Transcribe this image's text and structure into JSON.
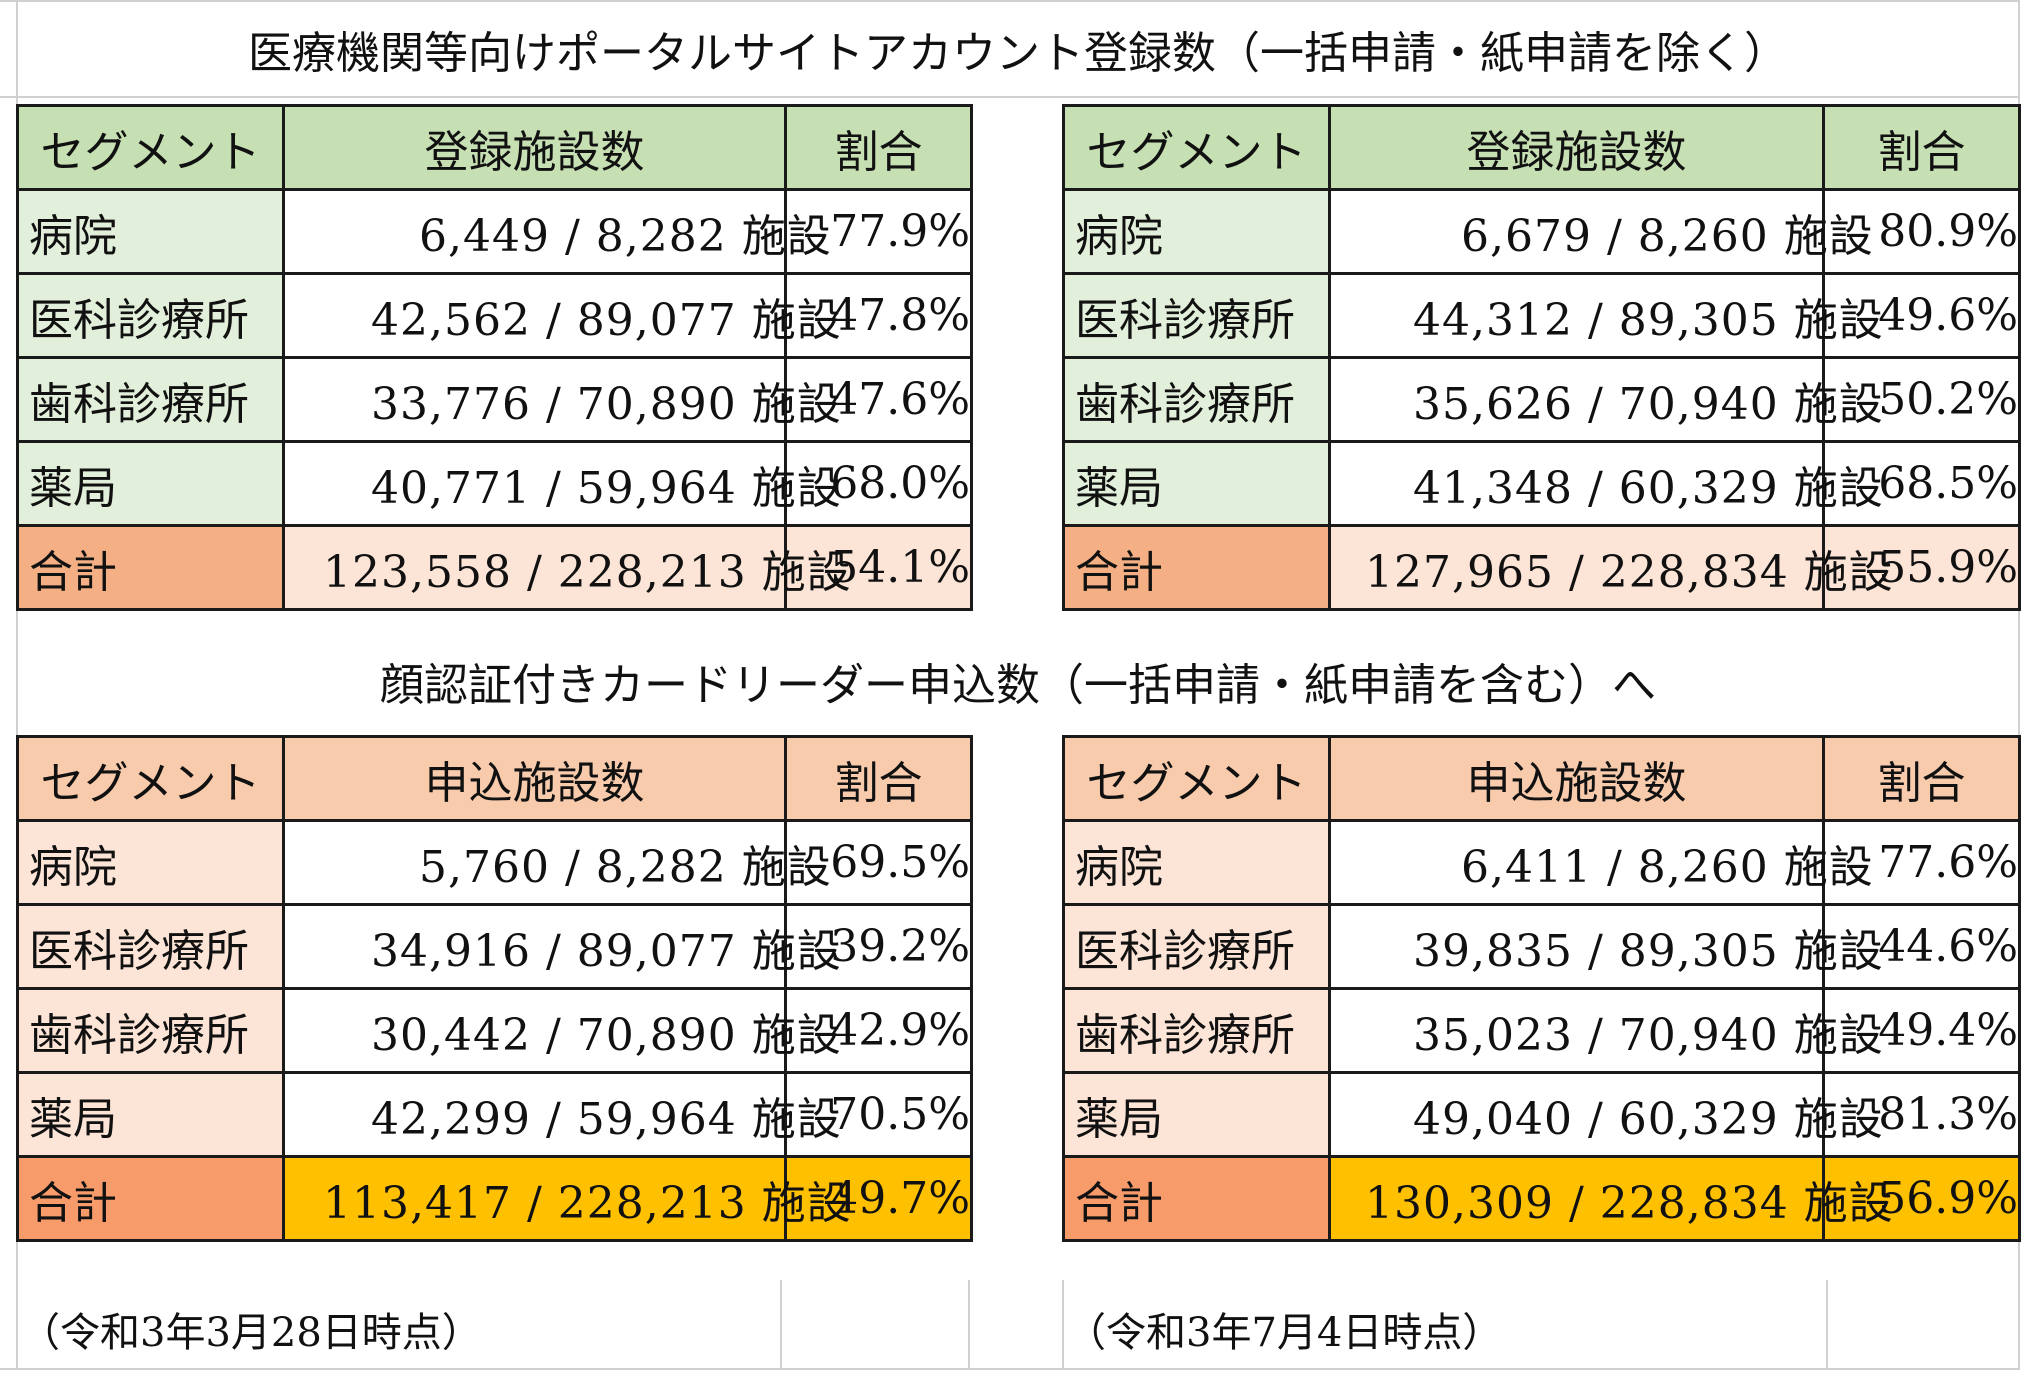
{
  "colors": {
    "header_green": "#c6e0b4",
    "segment_green": "#e2efda",
    "header_orange": "#f8cbad",
    "segment_orange": "#fce4d6",
    "total_orange": "#f4b084",
    "total_deep_orange": "#f79b6b",
    "total_yellow": "#ffc000"
  },
  "portal_section": {
    "title": "医療機関等向けポータルサイトアカウント登録数（一括申請・紙申請を除く）",
    "headers": {
      "segment": "セグメント",
      "count": "登録施設数",
      "ratio": "割合"
    },
    "left": {
      "rows": [
        {
          "segment": "病院",
          "count": "6,449 / 8,282 施設",
          "ratio": "77.9%"
        },
        {
          "segment": "医科診療所",
          "count": "42,562 / 89,077 施設",
          "ratio": "47.8%"
        },
        {
          "segment": "歯科診療所",
          "count": "33,776 / 70,890 施設",
          "ratio": "47.6%"
        },
        {
          "segment": "薬局",
          "count": "40,771 / 59,964 施設",
          "ratio": "68.0%"
        }
      ],
      "total": {
        "segment": "合計",
        "count": "123,558 / 228,213 施設",
        "ratio": "54.1%"
      }
    },
    "right": {
      "rows": [
        {
          "segment": "病院",
          "count": "6,679 / 8,260 施設",
          "ratio": "80.9%"
        },
        {
          "segment": "医科診療所",
          "count": "44,312 / 89,305 施設",
          "ratio": "49.6%"
        },
        {
          "segment": "歯科診療所",
          "count": "35,626 / 70,940 施設",
          "ratio": "50.2%"
        },
        {
          "segment": "薬局",
          "count": "41,348 / 60,329 施設",
          "ratio": "68.5%"
        }
      ],
      "total": {
        "segment": "合計",
        "count": "127,965 / 228,834 施設",
        "ratio": "55.9%"
      }
    }
  },
  "reader_section": {
    "title": "顔認証付きカードリーダー申込数（一括申請・紙申請を含む）へ",
    "headers": {
      "segment": "セグメント",
      "count": "申込施設数",
      "ratio": "割合"
    },
    "left": {
      "rows": [
        {
          "segment": "病院",
          "count": "5,760 / 8,282 施設",
          "ratio": "69.5%"
        },
        {
          "segment": "医科診療所",
          "count": "34,916 / 89,077 施設",
          "ratio": "39.2%"
        },
        {
          "segment": "歯科診療所",
          "count": "30,442 / 70,890 施設",
          "ratio": "42.9%"
        },
        {
          "segment": "薬局",
          "count": "42,299 / 59,964 施設",
          "ratio": "70.5%"
        }
      ],
      "total": {
        "segment": "合計",
        "count": "113,417 / 228,213 施設",
        "ratio": "49.7%"
      }
    },
    "right": {
      "rows": [
        {
          "segment": "病院",
          "count": "6,411 / 8,260 施設",
          "ratio": "77.6%"
        },
        {
          "segment": "医科診療所",
          "count": "39,835 / 89,305 施設",
          "ratio": "44.6%"
        },
        {
          "segment": "歯科診療所",
          "count": "35,023 / 70,940 施設",
          "ratio": "49.4%"
        },
        {
          "segment": "薬局",
          "count": "49,040 / 60,329 施設",
          "ratio": "81.3%"
        }
      ],
      "total": {
        "segment": "合計",
        "count": "130,309 / 228,834 施設",
        "ratio": "56.9%"
      }
    }
  },
  "notes": {
    "left": "（令和3年3月28日時点）",
    "right": "（令和3年7月4日時点）"
  }
}
